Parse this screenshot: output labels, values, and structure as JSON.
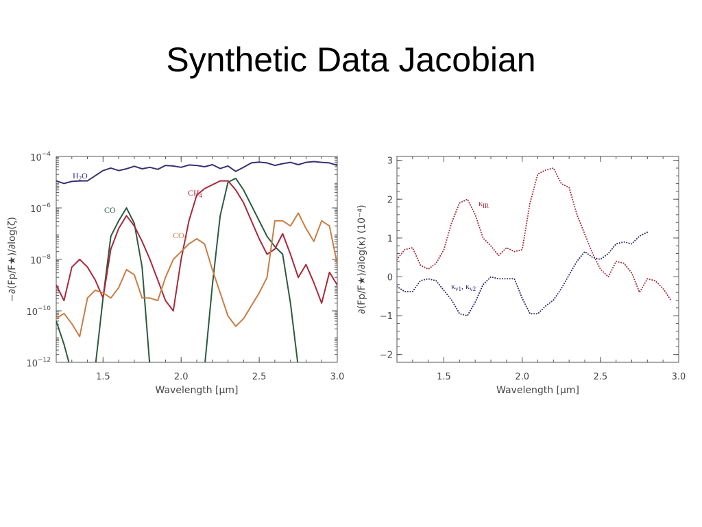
{
  "slide": {
    "title": "Synthetic Data Jacobian"
  },
  "chart_data": [
    {
      "type": "line",
      "yscale": "log",
      "xlabel": "Wavelength [μm]",
      "ylabel": "−∂(Fp/F★)/∂log(ζ)",
      "xlim": [
        1.2,
        3.0
      ],
      "ylim_exponents": [
        -12,
        -4
      ],
      "xticks": [
        "1.5",
        "2.0",
        "2.5",
        "3.0"
      ],
      "yticks": [
        {
          "base": "10",
          "exp": "−4",
          "value": -4
        },
        {
          "base": "10",
          "exp": "−6",
          "value": -6
        },
        {
          "base": "10",
          "exp": "−8",
          "value": -8
        },
        {
          "base": "10",
          "exp": "−10",
          "value": -10
        },
        {
          "base": "10",
          "exp": "−12",
          "value": -12
        }
      ],
      "grid": false,
      "series": [
        {
          "name": "H2O",
          "label_main": "H",
          "label_sub": "2",
          "label_rest": "O",
          "color": "#3a2f72",
          "style": "solid",
          "points": [
            [
              1.2,
              -4.95
            ],
            [
              1.25,
              -5.05
            ],
            [
              1.3,
              -4.97
            ],
            [
              1.35,
              -4.95
            ],
            [
              1.4,
              -4.95
            ],
            [
              1.45,
              -4.75
            ],
            [
              1.5,
              -4.55
            ],
            [
              1.55,
              -4.45
            ],
            [
              1.6,
              -4.55
            ],
            [
              1.65,
              -4.48
            ],
            [
              1.7,
              -4.38
            ],
            [
              1.75,
              -4.48
            ],
            [
              1.8,
              -4.42
            ],
            [
              1.85,
              -4.5
            ],
            [
              1.9,
              -4.35
            ],
            [
              1.95,
              -4.37
            ],
            [
              2.0,
              -4.42
            ],
            [
              2.05,
              -4.33
            ],
            [
              2.1,
              -4.35
            ],
            [
              2.15,
              -4.4
            ],
            [
              2.2,
              -4.32
            ],
            [
              2.25,
              -4.47
            ],
            [
              2.3,
              -4.37
            ],
            [
              2.35,
              -4.58
            ],
            [
              2.4,
              -4.42
            ],
            [
              2.45,
              -4.25
            ],
            [
              2.5,
              -4.22
            ],
            [
              2.55,
              -4.25
            ],
            [
              2.6,
              -4.35
            ],
            [
              2.65,
              -4.28
            ],
            [
              2.7,
              -4.23
            ],
            [
              2.75,
              -4.32
            ],
            [
              2.8,
              -4.23
            ],
            [
              2.85,
              -4.2
            ],
            [
              2.9,
              -4.23
            ],
            [
              2.95,
              -4.25
            ],
            [
              3.0,
              -4.35
            ]
          ]
        },
        {
          "name": "CO",
          "label_main": "CO",
          "label_sub": "",
          "label_rest": "",
          "color": "#2a5a3f",
          "style": "solid",
          "points": [
            [
              1.2,
              -10.4
            ],
            [
              1.25,
              -11.3
            ],
            [
              1.29,
              -12.2
            ],
            [
              1.45,
              -12.2
            ],
            [
              1.5,
              -9.5
            ],
            [
              1.55,
              -7.1
            ],
            [
              1.6,
              -6.5
            ],
            [
              1.65,
              -6.0
            ],
            [
              1.7,
              -6.6
            ],
            [
              1.75,
              -8.3
            ],
            [
              1.8,
              -12.2
            ],
            [
              2.15,
              -12.2
            ],
            [
              2.2,
              -9.0
            ],
            [
              2.25,
              -6.3
            ],
            [
              2.3,
              -5.0
            ],
            [
              2.35,
              -4.85
            ],
            [
              2.4,
              -5.3
            ],
            [
              2.45,
              -5.9
            ],
            [
              2.5,
              -6.5
            ],
            [
              2.55,
              -7.1
            ],
            [
              2.6,
              -7.5
            ],
            [
              2.65,
              -7.8
            ],
            [
              2.7,
              -9.7
            ],
            [
              2.75,
              -12.2
            ]
          ]
        },
        {
          "name": "CH4",
          "label_main": "CH",
          "label_sub": "4",
          "label_rest": "",
          "color": "#a8283a",
          "style": "solid",
          "points": [
            [
              1.2,
              -9.0
            ],
            [
              1.25,
              -9.6
            ],
            [
              1.3,
              -8.3
            ],
            [
              1.35,
              -8.0
            ],
            [
              1.4,
              -8.3
            ],
            [
              1.45,
              -8.8
            ],
            [
              1.5,
              -9.5
            ],
            [
              1.55,
              -7.6
            ],
            [
              1.6,
              -6.8
            ],
            [
              1.65,
              -6.3
            ],
            [
              1.7,
              -6.7
            ],
            [
              1.75,
              -7.3
            ],
            [
              1.8,
              -8.0
            ],
            [
              1.85,
              -8.8
            ],
            [
              1.9,
              -9.6
            ],
            [
              1.95,
              -10.0
            ],
            [
              2.0,
              -8.0
            ],
            [
              2.05,
              -6.5
            ],
            [
              2.1,
              -5.5
            ],
            [
              2.15,
              -5.25
            ],
            [
              2.2,
              -5.1
            ],
            [
              2.25,
              -4.95
            ],
            [
              2.3,
              -4.95
            ],
            [
              2.35,
              -5.3
            ],
            [
              2.4,
              -5.8
            ],
            [
              2.45,
              -6.5
            ],
            [
              2.5,
              -7.2
            ],
            [
              2.55,
              -7.8
            ],
            [
              2.6,
              -7.6
            ],
            [
              2.65,
              -7.0
            ],
            [
              2.7,
              -7.8
            ],
            [
              2.75,
              -8.7
            ],
            [
              2.8,
              -8.2
            ],
            [
              2.85,
              -8.9
            ],
            [
              2.9,
              -9.7
            ],
            [
              2.95,
              -8.5
            ],
            [
              3.0,
              -9.0
            ]
          ]
        },
        {
          "name": "CO2",
          "label_main": "CO",
          "label_sub": "2",
          "label_rest": "",
          "color": "#c97d45",
          "style": "solid",
          "points": [
            [
              1.2,
              -10.3
            ],
            [
              1.25,
              -10.1
            ],
            [
              1.3,
              -10.5
            ],
            [
              1.35,
              -11.0
            ],
            [
              1.4,
              -9.5
            ],
            [
              1.45,
              -9.2
            ],
            [
              1.5,
              -9.3
            ],
            [
              1.55,
              -9.5
            ],
            [
              1.6,
              -9.1
            ],
            [
              1.65,
              -8.4
            ],
            [
              1.7,
              -8.6
            ],
            [
              1.75,
              -9.5
            ],
            [
              1.8,
              -9.5
            ],
            [
              1.85,
              -9.6
            ],
            [
              1.9,
              -8.7
            ],
            [
              1.95,
              -8.0
            ],
            [
              2.0,
              -7.7
            ],
            [
              2.05,
              -7.4
            ],
            [
              2.1,
              -7.2
            ],
            [
              2.15,
              -7.4
            ],
            [
              2.2,
              -8.4
            ],
            [
              2.25,
              -9.3
            ],
            [
              2.3,
              -10.2
            ],
            [
              2.35,
              -10.6
            ],
            [
              2.4,
              -10.3
            ],
            [
              2.45,
              -9.8
            ],
            [
              2.5,
              -9.3
            ],
            [
              2.55,
              -8.7
            ],
            [
              2.6,
              -6.5
            ],
            [
              2.65,
              -6.5
            ],
            [
              2.7,
              -6.7
            ],
            [
              2.75,
              -6.2
            ],
            [
              2.8,
              -6.8
            ],
            [
              2.85,
              -7.3
            ],
            [
              2.9,
              -6.5
            ],
            [
              2.95,
              -6.7
            ],
            [
              3.0,
              -8.2
            ]
          ]
        }
      ]
    },
    {
      "type": "line",
      "yscale": "linear",
      "xlabel": "Wavelength [μm]",
      "ylabel": "∂(Fp/F★)/∂log(κ) (10⁻⁴)",
      "xlim": [
        1.2,
        3.0
      ],
      "ylim": [
        -2.2,
        3.1
      ],
      "xticks": [
        "1.5",
        "2.0",
        "2.5",
        "3.0"
      ],
      "yticks": [
        "3",
        "2",
        "1",
        "0",
        "−1",
        "−2"
      ],
      "grid": false,
      "series": [
        {
          "name": "κIR",
          "label_main": "κ",
          "label_sub": "IR",
          "label_rest": "",
          "color": "#a8283a",
          "style": "dotted",
          "points": [
            [
              1.2,
              0.45
            ],
            [
              1.25,
              0.7
            ],
            [
              1.3,
              0.75
            ],
            [
              1.35,
              0.3
            ],
            [
              1.4,
              0.2
            ],
            [
              1.45,
              0.35
            ],
            [
              1.5,
              0.7
            ],
            [
              1.55,
              1.4
            ],
            [
              1.6,
              1.9
            ],
            [
              1.65,
              2.0
            ],
            [
              1.7,
              1.6
            ],
            [
              1.75,
              1.0
            ],
            [
              1.8,
              0.8
            ],
            [
              1.85,
              0.55
            ],
            [
              1.9,
              0.75
            ],
            [
              1.95,
              0.65
            ],
            [
              2.0,
              0.7
            ],
            [
              2.05,
              1.9
            ],
            [
              2.1,
              2.65
            ],
            [
              2.15,
              2.75
            ],
            [
              2.2,
              2.8
            ],
            [
              2.25,
              2.4
            ],
            [
              2.3,
              2.3
            ],
            [
              2.35,
              1.6
            ],
            [
              2.4,
              1.1
            ],
            [
              2.45,
              0.6
            ],
            [
              2.5,
              0.2
            ],
            [
              2.55,
              0.0
            ],
            [
              2.6,
              0.4
            ],
            [
              2.65,
              0.35
            ],
            [
              2.7,
              0.1
            ],
            [
              2.75,
              -0.4
            ],
            [
              2.8,
              -0.05
            ],
            [
              2.85,
              -0.1
            ],
            [
              2.9,
              -0.3
            ],
            [
              2.95,
              -0.6
            ]
          ]
        },
        {
          "name": "κv1, κv2",
          "label_main": "κ",
          "label_sub": "v1",
          "label_rest": ", ",
          "label_main2": "κ",
          "label_sub2": "v2",
          "color": "#2a2a6a",
          "style": "dotted",
          "points": [
            [
              1.2,
              -0.25
            ],
            [
              1.25,
              -0.38
            ],
            [
              1.3,
              -0.38
            ],
            [
              1.35,
              -0.1
            ],
            [
              1.4,
              -0.05
            ],
            [
              1.45,
              -0.1
            ],
            [
              1.5,
              -0.35
            ],
            [
              1.55,
              -0.6
            ],
            [
              1.6,
              -0.95
            ],
            [
              1.65,
              -1.0
            ],
            [
              1.7,
              -0.65
            ],
            [
              1.75,
              -0.2
            ],
            [
              1.8,
              0.0
            ],
            [
              1.85,
              -0.05
            ],
            [
              1.9,
              -0.05
            ],
            [
              1.95,
              -0.05
            ],
            [
              2.0,
              -0.55
            ],
            [
              2.05,
              -0.95
            ],
            [
              2.1,
              -0.95
            ],
            [
              2.15,
              -0.75
            ],
            [
              2.2,
              -0.6
            ],
            [
              2.25,
              -0.3
            ],
            [
              2.3,
              0.05
            ],
            [
              2.35,
              0.4
            ],
            [
              2.4,
              0.65
            ],
            [
              2.45,
              0.5
            ],
            [
              2.5,
              0.45
            ],
            [
              2.55,
              0.6
            ],
            [
              2.6,
              0.85
            ],
            [
              2.65,
              0.9
            ],
            [
              2.7,
              0.85
            ],
            [
              2.75,
              1.05
            ],
            [
              2.8,
              1.15
            ]
          ]
        }
      ]
    }
  ]
}
